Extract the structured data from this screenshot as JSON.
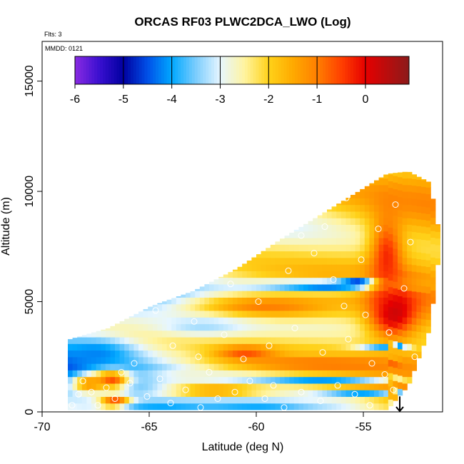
{
  "chart_data": {
    "type": "heatmap",
    "title": "ORCAS RF03 PLWC2DCA_LWO (Log)",
    "flights_label": "Flts: 3",
    "date_label": "MMDD: 0121",
    "xlabel": "Latitude (deg N)",
    "ylabel": "Altitude (m)",
    "xlim": [
      -70,
      -51.3
    ],
    "ylim": [
      0,
      16800
    ],
    "x_ticks": [
      {
        "value": -70,
        "label": "-70"
      },
      {
        "value": -65,
        "label": "-65"
      },
      {
        "value": -60,
        "label": "-60"
      },
      {
        "value": -55,
        "label": "-55"
      }
    ],
    "y_ticks": [
      {
        "value": 0,
        "label": "0"
      },
      {
        "value": 5000,
        "label": "5000"
      },
      {
        "value": 10000,
        "label": "10000"
      },
      {
        "value": 15000,
        "label": "15000"
      }
    ],
    "colorbar": {
      "range": [
        -6,
        0.9
      ],
      "ticks": [
        {
          "value": -6,
          "label": "-6"
        },
        {
          "value": -5,
          "label": "-5"
        },
        {
          "value": -4,
          "label": "-4"
        },
        {
          "value": -3,
          "label": "-3"
        },
        {
          "value": -2,
          "label": "-2"
        },
        {
          "value": -1,
          "label": "-1"
        },
        {
          "value": 0,
          "label": "0"
        }
      ],
      "stops": [
        {
          "v": -6.0,
          "color": "#8a2be2"
        },
        {
          "v": -5.5,
          "color": "#3a0fd0"
        },
        {
          "v": -5.0,
          "color": "#0000a0"
        },
        {
          "v": -4.5,
          "color": "#0050e8"
        },
        {
          "v": -4.0,
          "color": "#00a8ff"
        },
        {
          "v": -3.5,
          "color": "#7ccdfd"
        },
        {
          "v": -3.0,
          "color": "#e6f6ff"
        },
        {
          "v": -2.5,
          "color": "#fff4a0"
        },
        {
          "v": -2.0,
          "color": "#ffd21a"
        },
        {
          "v": -1.5,
          "color": "#ffaa00"
        },
        {
          "v": -1.0,
          "color": "#ff7f00"
        },
        {
          "v": -0.5,
          "color": "#ff4000"
        },
        {
          "v": 0.0,
          "color": "#e60000"
        },
        {
          "v": 0.9,
          "color": "#8b1a1a"
        }
      ]
    },
    "envelope": {
      "x": [
        -68.8,
        -67.0,
        -65.0,
        -63.0,
        -61.0,
        -59.0,
        -57.0,
        -55.0,
        -54.0,
        -53.0,
        -52.0,
        -51.6
      ],
      "y_top": [
        3300,
        3800,
        4800,
        5500,
        6500,
        7800,
        9000,
        10200,
        10800,
        10900,
        10400,
        8300
      ],
      "y_bottom": [
        100,
        100,
        100,
        100,
        100,
        100,
        100,
        100,
        100,
        1200,
        3800,
        7000
      ]
    },
    "features": [
      {
        "lat": -55.0,
        "alt": 5900,
        "value": -5.5,
        "dlat": 1.3,
        "dalt": 220
      },
      {
        "lat": -57.0,
        "alt": 5700,
        "value": -4.6,
        "dlat": 4.0,
        "dalt": 320
      },
      {
        "lat": -53.6,
        "alt": 4600,
        "value": 0.5,
        "dlat": 1.3,
        "dalt": 1400
      },
      {
        "lat": -53.9,
        "alt": 7000,
        "value": -0.3,
        "dlat": 0.9,
        "dalt": 2300
      },
      {
        "lat": -59.5,
        "alt": 4800,
        "value": -1.0,
        "dlat": 4.5,
        "dalt": 700
      },
      {
        "lat": -57.5,
        "alt": 2200,
        "value": -0.1,
        "dlat": 5.0,
        "dalt": 170
      },
      {
        "lat": -60.5,
        "alt": 2700,
        "value": -0.6,
        "dlat": 1.6,
        "dalt": 350
      },
      {
        "lat": -54.0,
        "alt": 3000,
        "value": -5.0,
        "dlat": 1.4,
        "dalt": 90
      },
      {
        "lat": -57.0,
        "alt": 1500,
        "value": -4.3,
        "dlat": 4.5,
        "dalt": 180
      },
      {
        "lat": -55.0,
        "alt": 900,
        "value": -5.4,
        "dlat": 2.5,
        "dalt": 80
      },
      {
        "lat": -56.0,
        "alt": 400,
        "value": -5.2,
        "dlat": 2.0,
        "dalt": 120
      },
      {
        "lat": -62.0,
        "alt": 1000,
        "value": -1.2,
        "dlat": 3.0,
        "dalt": 350
      },
      {
        "lat": -63.5,
        "alt": 1600,
        "value": -2.2,
        "dlat": 2.5,
        "dalt": 200
      },
      {
        "lat": -66.8,
        "alt": 1500,
        "value": -0.4,
        "dlat": 1.0,
        "dalt": 500
      },
      {
        "lat": -66.6,
        "alt": 400,
        "value": -0.2,
        "dlat": 0.8,
        "dalt": 400
      },
      {
        "lat": -67.8,
        "alt": 1300,
        "value": -1.2,
        "dlat": 1.0,
        "dalt": 500
      },
      {
        "lat": -67.5,
        "alt": 2700,
        "value": -4.2,
        "dlat": 2.0,
        "dalt": 700
      },
      {
        "lat": -62.5,
        "alt": 3900,
        "value": -3.3,
        "dlat": 2.5,
        "dalt": 500
      },
      {
        "lat": -64.5,
        "alt": 200,
        "value": -4.1,
        "dlat": 3.0,
        "dalt": 150
      },
      {
        "lat": -60.0,
        "alt": 300,
        "value": -4.0,
        "dlat": 3.0,
        "dalt": 200
      }
    ],
    "flight_points": [
      [
        -68.6,
        300
      ],
      [
        -68.3,
        800
      ],
      [
        -68.1,
        1400
      ],
      [
        -67.7,
        900
      ],
      [
        -67.4,
        300
      ],
      [
        -67.0,
        1100
      ],
      [
        -66.6,
        600
      ],
      [
        -65.9,
        1300
      ],
      [
        -65.1,
        700
      ],
      [
        -64.5,
        1500
      ],
      [
        -64.0,
        400
      ],
      [
        -63.3,
        1000
      ],
      [
        -62.6,
        200
      ],
      [
        -61.8,
        600
      ],
      [
        -61.0,
        900
      ],
      [
        -60.3,
        1400
      ],
      [
        -59.6,
        600
      ],
      [
        -58.7,
        200
      ],
      [
        -57.9,
        900
      ],
      [
        -57.0,
        500
      ],
      [
        -56.2,
        1200
      ],
      [
        -55.4,
        800
      ],
      [
        -54.7,
        300
      ],
      [
        -54.0,
        1700
      ],
      [
        -53.6,
        1000
      ],
      [
        -65.7,
        2200
      ],
      [
        -63.9,
        3000
      ],
      [
        -62.7,
        2500
      ],
      [
        -61.5,
        3500
      ],
      [
        -60.6,
        2400
      ],
      [
        -59.4,
        3000
      ],
      [
        -58.2,
        3800
      ],
      [
        -56.9,
        2700
      ],
      [
        -55.7,
        3300
      ],
      [
        -54.6,
        2200
      ],
      [
        -53.8,
        3600
      ],
      [
        -64.7,
        4600
      ],
      [
        -62.9,
        4100
      ],
      [
        -61.2,
        5800
      ],
      [
        -59.9,
        5000
      ],
      [
        -58.5,
        6400
      ],
      [
        -57.3,
        7200
      ],
      [
        -56.4,
        6000
      ],
      [
        -55.1,
        6900
      ],
      [
        -54.3,
        8300
      ],
      [
        -53.5,
        9400
      ],
      [
        -52.8,
        7700
      ],
      [
        -55.8,
        9700
      ],
      [
        -56.8,
        8400
      ],
      [
        -57.9,
        8000
      ],
      [
        -53.1,
        5600
      ],
      [
        -54.9,
        4400
      ],
      [
        -55.9,
        4800
      ],
      [
        -52.6,
        2500
      ],
      [
        -66.3,
        1800
      ],
      [
        -59.2,
        1200
      ],
      [
        -62.2,
        1800
      ]
    ],
    "arrow": {
      "lat": -53.3,
      "alt_from": 700,
      "alt_to": 0
    }
  }
}
